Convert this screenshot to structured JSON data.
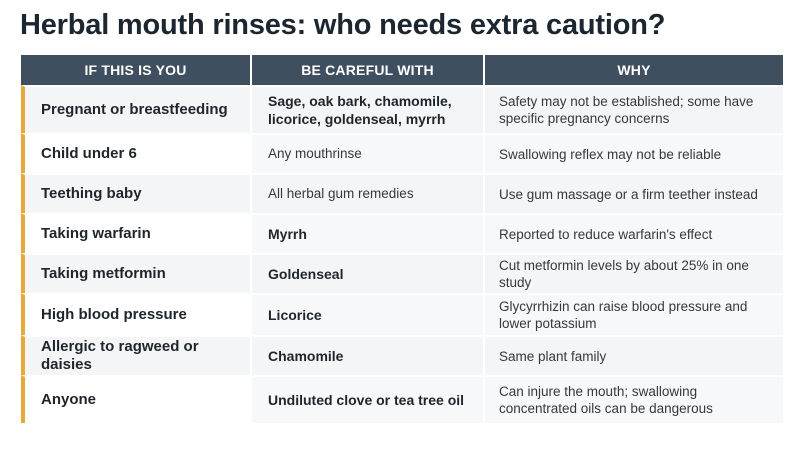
{
  "title": "Herbal mouth rinses: who needs extra caution?",
  "columns": [
    "IF THIS IS YOU",
    "BE CAREFUL WITH",
    "WHY"
  ],
  "colors": {
    "header_bg": "#3f4f60",
    "accent": "#e8a93a"
  },
  "rows": [
    {
      "who": "Pregnant or breastfeeding",
      "careful": "Sage, oak bark, chamomile, licorice, goldenseal, myrrh",
      "careful_bold": true,
      "why": "Safety may not be established; some have specific pregnancy concerns"
    },
    {
      "who": "Child under 6",
      "careful": "Any mouthrinse",
      "careful_bold": false,
      "why": "Swallowing reflex may not be reliable"
    },
    {
      "who": "Teething baby",
      "careful": "All herbal gum remedies",
      "careful_bold": false,
      "why": "Use gum massage or a firm teether instead"
    },
    {
      "who": "Taking warfarin",
      "careful": "Myrrh",
      "careful_bold": true,
      "why": "Reported to reduce warfarin's effect"
    },
    {
      "who": "Taking metformin",
      "careful": "Goldenseal",
      "careful_bold": true,
      "why": "Cut metformin levels by about 25% in one study"
    },
    {
      "who": "High blood pressure",
      "careful": "Licorice",
      "careful_bold": true,
      "why": "Glycyrrhizin can raise blood pressure and lower potassium"
    },
    {
      "who": "Allergic to ragweed or daisies",
      "careful": "Chamomile",
      "careful_bold": true,
      "why": "Same plant family"
    },
    {
      "who": "Anyone",
      "careful": "Undiluted clove or tea tree oil",
      "careful_bold": true,
      "why": "Can injure the mouth; swallowing concentrated oils can be dangerous"
    }
  ]
}
